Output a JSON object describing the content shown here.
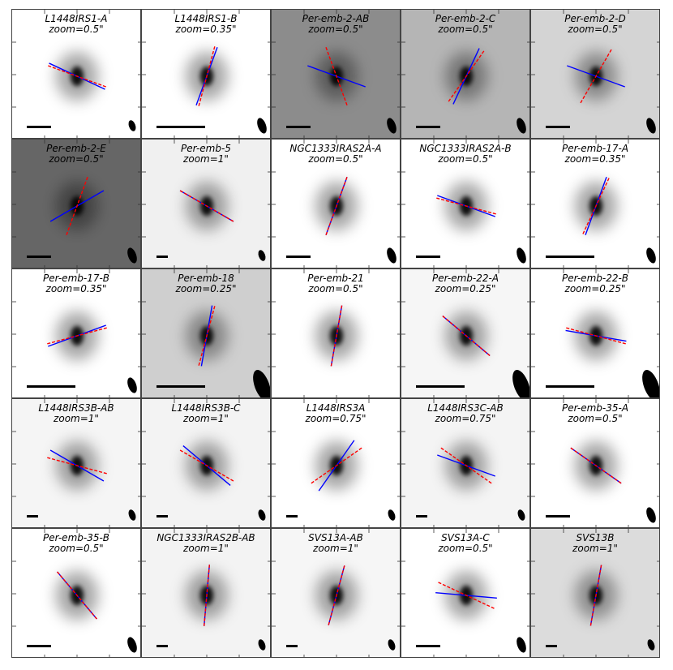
{
  "figure": {
    "panels": [
      {
        "name": "L1448IRS1-A",
        "zoom": "zoom=0.5\"",
        "bg": "#ffffff",
        "angles": [
          -25,
          -20
        ],
        "scalebar": "short",
        "beam": "small"
      },
      {
        "name": "L1448IRS1-B",
        "zoom": "zoom=0.35\"",
        "bg": "#ffffff",
        "angles": [
          70,
          75
        ],
        "scalebar": "long",
        "beam": "medium"
      },
      {
        "name": "Per-emb-2-AB",
        "zoom": "zoom=0.5\"",
        "bg": "#8c8c8c",
        "angles": [
          -20,
          -70
        ],
        "scalebar": "short",
        "beam": "medium"
      },
      {
        "name": "Per-emb-2-C",
        "zoom": "zoom=0.5\"",
        "bg": "#b5b5b5",
        "angles": [
          65,
          55
        ],
        "scalebar": "short",
        "beam": "medium"
      },
      {
        "name": "Per-emb-2-D",
        "zoom": "zoom=0.5\"",
        "bg": "#d4d4d4",
        "angles": [
          -20,
          60
        ],
        "scalebar": "short",
        "beam": "medium"
      },
      {
        "name": "Per-emb-2-E",
        "zoom": "zoom=0.5\"",
        "bg": "#666666",
        "angles": [
          30,
          70
        ],
        "scalebar": "short",
        "beam": "medium"
      },
      {
        "name": "Per-emb-5",
        "zoom": "zoom=1\"",
        "bg": "#f0f0f0",
        "angles": [
          -30,
          -30
        ],
        "scalebar": "tiny",
        "beam": "small"
      },
      {
        "name": "NGC1333IRAS2A-A",
        "zoom": "zoom=0.5\"",
        "bg": "#ffffff",
        "angles": [
          70,
          70
        ],
        "scalebar": "short",
        "beam": "medium"
      },
      {
        "name": "NGC1333IRAS2A-B",
        "zoom": "zoom=0.5\"",
        "bg": "#ffffff",
        "angles": [
          -20,
          -15
        ],
        "scalebar": "short",
        "beam": "medium"
      },
      {
        "name": "Per-emb-17-A",
        "zoom": "zoom=0.35\"",
        "bg": "#ffffff",
        "angles": [
          70,
          65
        ],
        "scalebar": "long",
        "beam": "medium"
      },
      {
        "name": "Per-emb-17-B",
        "zoom": "zoom=0.35\"",
        "bg": "#ffffff",
        "angles": [
          20,
          15
        ],
        "scalebar": "long",
        "beam": "medium"
      },
      {
        "name": "Per-emb-18",
        "zoom": "zoom=0.25\"",
        "bg": "#cfcfcf",
        "angles": [
          80,
          75
        ],
        "scalebar": "long",
        "beam": "large"
      },
      {
        "name": "Per-emb-21",
        "zoom": "zoom=0.5\"",
        "bg": "#ffffff",
        "angles": [
          80,
          80
        ],
        "scalebar": "none",
        "beam": "none"
      },
      {
        "name": "Per-emb-22-A",
        "zoom": "zoom=0.25\"",
        "bg": "#f6f6f6",
        "angles": [
          -40,
          -40
        ],
        "scalebar": "long",
        "beam": "large"
      },
      {
        "name": "Per-emb-22-B",
        "zoom": "zoom=0.25\"",
        "bg": "#ffffff",
        "angles": [
          -10,
          -15
        ],
        "scalebar": "long",
        "beam": "large"
      },
      {
        "name": "L1448IRS3B-AB",
        "zoom": "zoom=1\"",
        "bg": "#f5f5f5",
        "angles": [
          -30,
          -15
        ],
        "scalebar": "tiny",
        "beam": "small"
      },
      {
        "name": "L1448IRS3B-C",
        "zoom": "zoom=1\"",
        "bg": "#f3f3f3",
        "angles": [
          -40,
          -30
        ],
        "scalebar": "tiny",
        "beam": "small"
      },
      {
        "name": "L1448IRS3A",
        "zoom": "zoom=0.75\"",
        "bg": "#ffffff",
        "angles": [
          55,
          35
        ],
        "scalebar": "tiny",
        "beam": "small"
      },
      {
        "name": "L1448IRS3C-AB",
        "zoom": "zoom=0.75\"",
        "bg": "#f4f4f4",
        "angles": [
          -20,
          -35
        ],
        "scalebar": "tiny",
        "beam": "small"
      },
      {
        "name": "Per-emb-35-A",
        "zoom": "zoom=0.5\"",
        "bg": "#ffffff",
        "angles": [
          -35,
          -35
        ],
        "scalebar": "short",
        "beam": "medium"
      },
      {
        "name": "Per-emb-35-B",
        "zoom": "zoom=0.5\"",
        "bg": "#ffffff",
        "angles": [
          -50,
          -50
        ],
        "scalebar": "short",
        "beam": "medium"
      },
      {
        "name": "NGC1333IRAS2B-AB",
        "zoom": "zoom=1\"",
        "bg": "#f3f3f3",
        "angles": [
          85,
          85
        ],
        "scalebar": "tiny",
        "beam": "small"
      },
      {
        "name": "SVS13A-AB",
        "zoom": "zoom=1\"",
        "bg": "#f6f6f6",
        "angles": [
          75,
          75
        ],
        "scalebar": "tiny",
        "beam": "small"
      },
      {
        "name": "SVS13A-C",
        "zoom": "zoom=0.5\"",
        "bg": "#ffffff",
        "angles": [
          -5,
          -25
        ],
        "scalebar": "short",
        "beam": "medium"
      },
      {
        "name": "SVS13B",
        "zoom": "zoom=1\"",
        "bg": "#dcdcdc",
        "angles": [
          80,
          80
        ],
        "scalebar": "tiny",
        "beam": "small"
      }
    ]
  }
}
